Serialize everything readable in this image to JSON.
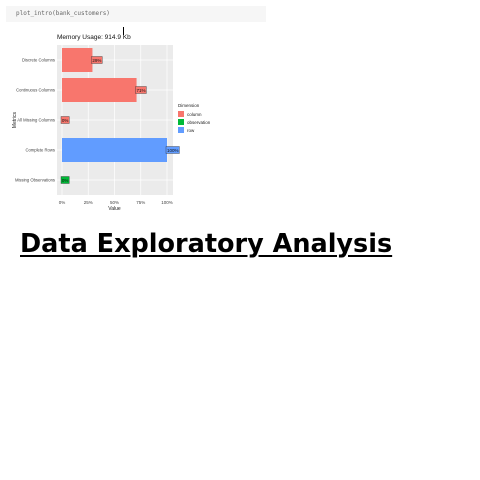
{
  "code": {
    "command": "plot_intro(bank_customers)"
  },
  "heading": {
    "text": "Data Exploratory Analysis"
  },
  "chart_data": {
    "type": "bar",
    "orientation": "horizontal",
    "title": "Memory Usage: 914.9 Kb",
    "xlabel": "Value",
    "ylabel": "Metrics",
    "xlim": [
      0,
      1
    ],
    "x_ticks": [
      "0%",
      "25%",
      "50%",
      "75%",
      "100%"
    ],
    "grid": true,
    "legend_title": "Dimension",
    "legend_position": "right",
    "legend": [
      {
        "name": "column",
        "color": "#f8766d"
      },
      {
        "name": "observation",
        "color": "#00ba38"
      },
      {
        "name": "row",
        "color": "#619cff"
      }
    ],
    "bars": [
      {
        "category": "Discrete Columns",
        "value": 0.29,
        "label": "29%",
        "dimension": "column"
      },
      {
        "category": "Continuous Columns",
        "value": 0.71,
        "label": "71%",
        "dimension": "column"
      },
      {
        "category": "All Missing Columns",
        "value": 0.0,
        "label": "0%",
        "dimension": "column"
      },
      {
        "category": "Complete Rows",
        "value": 1.0,
        "label": "100%",
        "dimension": "row"
      },
      {
        "category": "Missing Observations",
        "value": 0.0,
        "label": "0%",
        "dimension": "observation"
      }
    ]
  }
}
